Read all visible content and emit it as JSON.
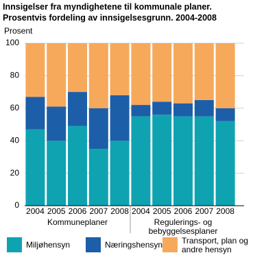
{
  "chart_data": {
    "type": "stacked-bar",
    "title": "Innsigelser fra myndighetene til kommunale planer. Prosentvis fordeling av innsigelsesgrunn. 2004-2008",
    "y_label": "Prosent",
    "groups": [
      {
        "name": "Kommuneplaner",
        "categories": [
          "2004",
          "2005",
          "2006",
          "2007",
          "2008"
        ]
      },
      {
        "name": "Regulerings- og bebyggelsesplaner",
        "categories": [
          "2004",
          "2005",
          "2006",
          "2007",
          "2008"
        ]
      }
    ],
    "series": [
      {
        "name": "Miljøhensyn",
        "color": "#0fa3b1",
        "values": [
          47,
          40,
          49,
          35,
          40,
          55,
          56,
          55,
          55,
          52
        ]
      },
      {
        "name": "Næringshensyn",
        "color": "#1d5ea8",
        "values": [
          20,
          21,
          21,
          25,
          28,
          7,
          8,
          8,
          10,
          8
        ]
      },
      {
        "name": "Transport, plan og andre hensyn",
        "color": "#f6a95b",
        "values": [
          33,
          39,
          30,
          40,
          32,
          38,
          36,
          37,
          35,
          40
        ]
      }
    ],
    "ylim": [
      0,
      100
    ],
    "yticks": [
      0,
      20,
      40,
      60,
      80,
      100
    ],
    "grid": true
  }
}
